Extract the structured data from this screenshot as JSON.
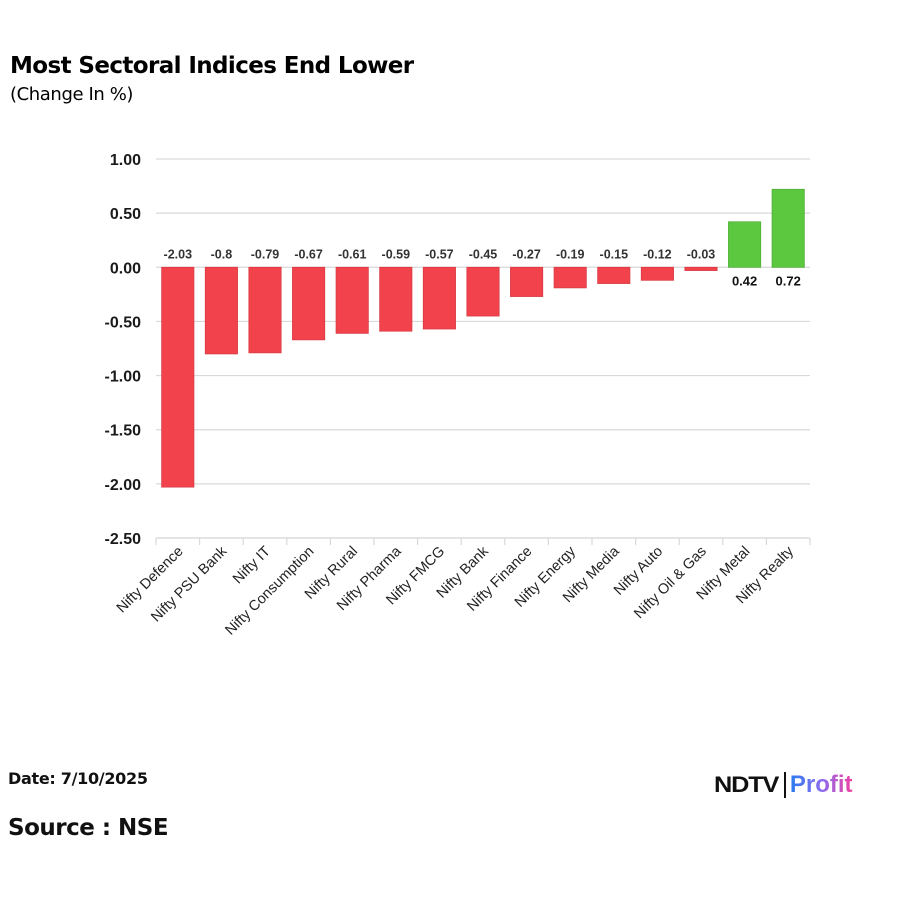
{
  "header": {
    "title": "Most Sectoral Indices End Lower",
    "subtitle": "(Change In %)"
  },
  "footer": {
    "date": "Date: 7/10/2025",
    "source": "Source : NSE",
    "logo_left": "NDTV",
    "logo_right": "Profit"
  },
  "colors": {
    "negative": "#f2434d",
    "positive": "#5cc840",
    "grid": "#d9d9d9",
    "text": "#1a1a1a",
    "label_negative": "#333333"
  },
  "chart_data": {
    "type": "bar",
    "title": "Most Sectoral Indices End Lower",
    "subtitle": "(Change In %)",
    "xlabel": "",
    "ylabel": "",
    "ylim": [
      -2.5,
      1.0
    ],
    "yticks": [
      1.0,
      0.5,
      0.0,
      -0.5,
      -1.0,
      -1.5,
      -2.0,
      -2.5
    ],
    "ytick_labels": [
      "1.00",
      "0.50",
      "0.00",
      "-0.50",
      "-1.00",
      "-1.50",
      "-2.00",
      "-2.50"
    ],
    "grid": true,
    "legend": "none",
    "categories": [
      "Nifty Defence",
      "Nifty PSU Bank",
      "Nifty IT",
      "Nifty Consumption",
      "Nifty Rural",
      "Nifty Pharma",
      "Nifty FMCG",
      "Nifty Bank",
      "Nifty Finance",
      "Nifty Energy",
      "Nifty Media",
      "Nifty Auto",
      "Nifty Oil & Gas",
      "Nifty Metal",
      "Nifty Realty"
    ],
    "values": [
      -2.03,
      -0.8,
      -0.79,
      -0.67,
      -0.61,
      -0.59,
      -0.57,
      -0.45,
      -0.27,
      -0.19,
      -0.15,
      -0.12,
      -0.03,
      0.42,
      0.72
    ],
    "data_labels": [
      "-2.03",
      "-0.8",
      "-0.79",
      "-0.67",
      "-0.61",
      "-0.59",
      "-0.57",
      "-0.45",
      "-0.27",
      "-0.19",
      "-0.15",
      "-0.12",
      "-0.03",
      "0.42",
      "0.72"
    ]
  }
}
